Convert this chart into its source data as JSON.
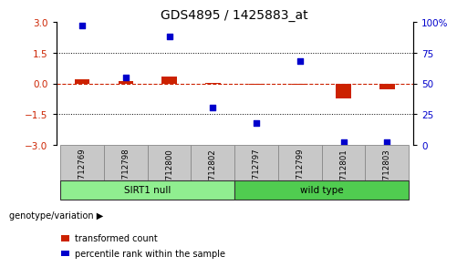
{
  "title": "GDS4895 / 1425883_at",
  "samples": [
    "GSM712769",
    "GSM712798",
    "GSM712800",
    "GSM712802",
    "GSM712797",
    "GSM712799",
    "GSM712801",
    "GSM712803"
  ],
  "transformed_count": [
    0.22,
    0.1,
    0.32,
    0.03,
    -0.05,
    -0.05,
    -0.72,
    -0.3
  ],
  "percentile_rank": [
    97,
    55,
    88,
    30,
    18,
    68,
    2,
    2
  ],
  "groups": [
    {
      "label": "SIRT1 null",
      "start": 0,
      "end": 4,
      "color": "#90EE90"
    },
    {
      "label": "wild type",
      "start": 4,
      "end": 8,
      "color": "#50CC50"
    }
  ],
  "group_label_prefix": "genotype/variation",
  "ylim_left": [
    -3,
    3
  ],
  "ylim_right": [
    0,
    100
  ],
  "yticks_left": [
    -3,
    -1.5,
    0,
    1.5,
    3
  ],
  "yticks_right": [
    0,
    25,
    50,
    75,
    100
  ],
  "ytick_labels_right": [
    "0",
    "25",
    "50",
    "75",
    "100%"
  ],
  "bar_color_red": "#CC2200",
  "bar_color_blue": "#0000CC",
  "zero_line_color": "#CC2200",
  "dotted_line_color": "#000000",
  "bg_color": "#FFFFFF",
  "legend_items": [
    {
      "color": "#CC2200",
      "label": "transformed count"
    },
    {
      "color": "#0000CC",
      "label": "percentile rank within the sample"
    }
  ],
  "bar_width": 0.35,
  "title_fontsize": 10,
  "tick_fontsize": 7.5,
  "label_fontsize": 7.5,
  "samp_label_color": "#C8C8C8",
  "samp_border_color": "#888888"
}
